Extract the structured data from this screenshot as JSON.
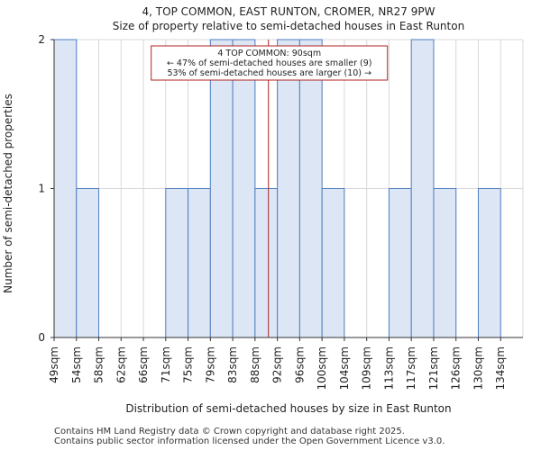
{
  "chart_data": {
    "type": "bar",
    "title": "4, TOP COMMON, EAST RUNTON, CROMER, NR27 9PW",
    "subtitle": "Size of property relative to semi-detached houses in East Runton",
    "xlabel": "Distribution of semi-detached houses by size in East Runton",
    "ylabel": "Number of semi-detached properties",
    "categories": [
      "49sqm",
      "54sqm",
      "58sqm",
      "62sqm",
      "66sqm",
      "71sqm",
      "75sqm",
      "79sqm",
      "83sqm",
      "88sqm",
      "92sqm",
      "96sqm",
      "100sqm",
      "104sqm",
      "109sqm",
      "113sqm",
      "117sqm",
      "121sqm",
      "126sqm",
      "130sqm",
      "134sqm"
    ],
    "values": [
      2,
      1,
      0,
      0,
      0,
      1,
      1,
      2,
      2,
      1,
      2,
      2,
      1,
      0,
      0,
      1,
      2,
      1,
      0,
      1,
      0
    ],
    "ylim": [
      0,
      2
    ],
    "yticks": [
      0,
      1,
      2
    ],
    "bar_color": "#dce6f5",
    "bar_edge_color": "#4f7fc2",
    "grid": true,
    "marker": {
      "value_index": 9.6,
      "color": "#b22222",
      "annotation_lines": [
        "4 TOP COMMON: 90sqm",
        "← 47% of semi-detached houses are smaller (9)",
        "53% of semi-detached houses are larger (10) →"
      ]
    }
  },
  "footer": {
    "line1": "Contains HM Land Registry data © Crown copyright and database right 2025.",
    "line2": "Contains public sector information licensed under the Open Government Licence v3.0."
  }
}
